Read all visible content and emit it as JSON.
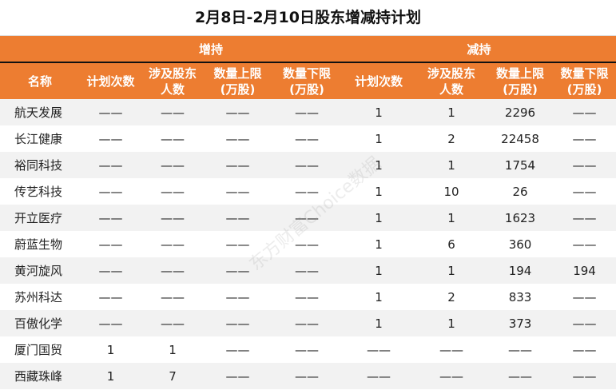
{
  "title": "2月8日-2月10日股东增减持计划",
  "groups": {
    "increase": "增持",
    "decrease": "减持"
  },
  "headers": [
    "名称",
    "计划次数",
    "涉及股东人数",
    "数量上限(万股)",
    "数量下限(万股)",
    "计划次数",
    "涉及股东人数",
    "数量上限(万股)",
    "数量下限(万股)"
  ],
  "header_lines": [
    [
      "名称"
    ],
    [
      "计划次数"
    ],
    [
      "涉及股东",
      "人数"
    ],
    [
      "数量上限",
      "(万股)"
    ],
    [
      "数量下限",
      "(万股)"
    ],
    [
      "计划次数"
    ],
    [
      "涉及股东",
      "人数"
    ],
    [
      "数量上限",
      "(万股)"
    ],
    [
      "数量下限",
      "(万股)"
    ]
  ],
  "rows": [
    [
      "航天发展",
      "——",
      "——",
      "——",
      "——",
      "1",
      "1",
      "2296",
      "——"
    ],
    [
      "长江健康",
      "——",
      "——",
      "——",
      "——",
      "1",
      "2",
      "22458",
      "——"
    ],
    [
      "裕同科技",
      "——",
      "——",
      "——",
      "——",
      "1",
      "1",
      "1754",
      "——"
    ],
    [
      "传艺科技",
      "——",
      "——",
      "——",
      "——",
      "1",
      "10",
      "26",
      "——"
    ],
    [
      "开立医疗",
      "——",
      "——",
      "——",
      "——",
      "1",
      "1",
      "1623",
      "——"
    ],
    [
      "蔚蓝生物",
      "——",
      "——",
      "——",
      "——",
      "1",
      "6",
      "360",
      "——"
    ],
    [
      "黄河旋风",
      "——",
      "——",
      "——",
      "——",
      "1",
      "1",
      "194",
      "194"
    ],
    [
      "苏州科达",
      "——",
      "——",
      "——",
      "——",
      "1",
      "2",
      "833",
      "——"
    ],
    [
      "百傲化学",
      "——",
      "——",
      "——",
      "——",
      "1",
      "1",
      "373",
      "——"
    ],
    [
      "厦门国贸",
      "1",
      "1",
      "——",
      "——",
      "——",
      "——",
      "——",
      "——"
    ],
    [
      "西藏珠峰",
      "1",
      "7",
      "——",
      "——",
      "——",
      "——",
      "——",
      "——"
    ]
  ],
  "watermark": "东方财富Choice数据",
  "colors": {
    "header": "#ED7D31",
    "stripe": "#F2F2F2"
  }
}
